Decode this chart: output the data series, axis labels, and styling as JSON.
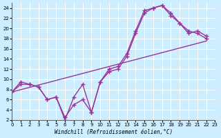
{
  "xlabel": "Windchill (Refroidissement éolien,°C)",
  "bg_color": "#cceeff",
  "line_color": "#993399",
  "grid_color": "#ffffff",
  "xlim": [
    0,
    23
  ],
  "ylim": [
    2,
    25
  ],
  "xticks": [
    0,
    1,
    2,
    3,
    4,
    5,
    6,
    7,
    8,
    9,
    10,
    11,
    12,
    13,
    14,
    15,
    16,
    17,
    18,
    19,
    20,
    21,
    22,
    23
  ],
  "yticks": [
    2,
    4,
    6,
    8,
    10,
    12,
    14,
    16,
    18,
    20,
    22,
    24
  ],
  "line1_x": [
    0,
    1,
    2,
    3,
    4,
    5,
    6,
    7,
    8,
    9,
    10,
    11,
    12,
    13,
    14,
    15,
    16,
    17,
    18,
    19,
    20,
    21,
    22
  ],
  "line1_y": [
    7.5,
    9.0,
    9.0,
    8.5,
    6.0,
    6.5,
    2.0,
    6.5,
    9.0,
    3.5,
    9.5,
    11.5,
    12.0,
    14.5,
    19.0,
    23.0,
    24.0,
    24.5,
    23.0,
    21.0,
    19.0,
    19.5,
    18.5
  ],
  "line2_x": [
    0,
    1,
    2,
    3,
    4,
    5,
    6,
    7,
    8,
    9,
    10,
    11,
    12,
    13,
    14,
    15,
    16,
    17,
    18,
    19,
    20,
    21,
    22
  ],
  "line2_y": [
    7.5,
    9.5,
    9.0,
    8.5,
    6.0,
    6.5,
    2.5,
    5.0,
    6.0,
    3.5,
    9.5,
    12.0,
    12.5,
    15.0,
    19.5,
    23.5,
    24.0,
    24.5,
    22.5,
    21.0,
    19.5,
    19.0,
    18.0
  ],
  "line3_x": [
    0,
    22
  ],
  "line3_y": [
    7.5,
    17.5
  ],
  "markersize": 4,
  "linewidth": 1.0
}
